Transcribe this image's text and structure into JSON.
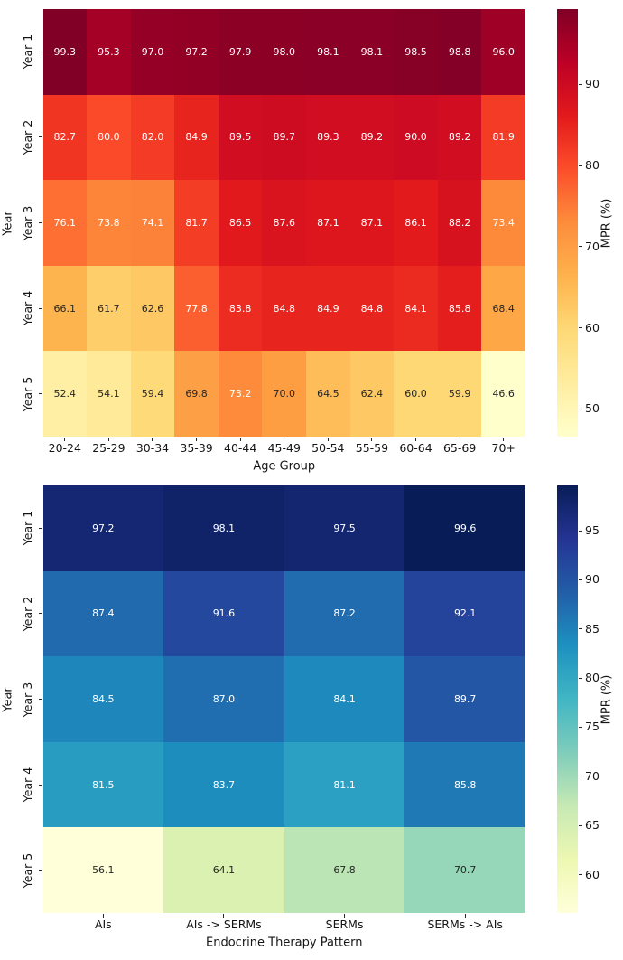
{
  "page": {
    "background": "#ffffff"
  },
  "chart_data": [
    {
      "type": "heatmap",
      "name": "mpr-by-age-group",
      "xlabel": "Age Group",
      "ylabel": "Year",
      "colorbar_label": "MPR (%)",
      "colormap": "YlOrRd",
      "rows": [
        "Year 1",
        "Year 2",
        "Year 3",
        "Year 4",
        "Year 5"
      ],
      "columns": [
        "20-24",
        "25-29",
        "30-34",
        "35-39",
        "40-44",
        "45-49",
        "50-54",
        "55-59",
        "60-64",
        "65-69",
        "70+"
      ],
      "values": [
        [
          99.3,
          95.3,
          97.0,
          97.2,
          97.9,
          98.0,
          98.1,
          98.1,
          98.5,
          98.8,
          96.0
        ],
        [
          82.7,
          80.0,
          82.0,
          84.9,
          89.5,
          89.7,
          89.3,
          89.2,
          90.0,
          89.2,
          81.9
        ],
        [
          76.1,
          73.8,
          74.1,
          81.7,
          86.5,
          87.6,
          87.1,
          87.1,
          86.1,
          88.2,
          73.4
        ],
        [
          66.1,
          61.7,
          62.6,
          77.8,
          83.8,
          84.8,
          84.9,
          84.8,
          84.1,
          85.8,
          68.4
        ],
        [
          52.4,
          54.1,
          59.4,
          69.8,
          73.2,
          70.0,
          64.5,
          62.4,
          60.0,
          59.9,
          46.6
        ]
      ],
      "vmin": 46.6,
      "vmax": 99.3,
      "colorbar_ticks": [
        90,
        80,
        70,
        60,
        50
      ],
      "value_format_decimals": 1,
      "legend_position": "right",
      "grid": false
    },
    {
      "type": "heatmap",
      "name": "mpr-by-endocrine-therapy-pattern",
      "xlabel": "Endocrine Therapy Pattern",
      "ylabel": "Year",
      "colorbar_label": "MPR (%)",
      "colormap": "YlGnBu",
      "rows": [
        "Year 1",
        "Year 2",
        "Year 3",
        "Year 4",
        "Year 5"
      ],
      "columns": [
        "AIs",
        "AIs -> SERMs",
        "SERMs",
        "SERMs -> AIs"
      ],
      "values": [
        [
          97.2,
          98.1,
          97.5,
          99.6
        ],
        [
          87.4,
          91.6,
          87.2,
          92.1
        ],
        [
          84.5,
          87.0,
          84.1,
          89.7
        ],
        [
          81.5,
          83.7,
          81.1,
          85.8
        ],
        [
          56.1,
          64.1,
          67.8,
          70.7
        ]
      ],
      "vmin": 56.1,
      "vmax": 99.6,
      "colorbar_ticks": [
        95,
        90,
        85,
        80,
        75,
        70,
        65,
        60
      ],
      "value_format_decimals": 1,
      "legend_position": "right",
      "grid": false
    }
  ],
  "colormaps": {
    "YlOrRd": [
      "#ffffcc",
      "#ffeda0",
      "#fed976",
      "#feb24c",
      "#fd8d3c",
      "#fc4e2a",
      "#e31a1c",
      "#bd0026",
      "#800026"
    ],
    "YlGnBu": [
      "#ffffd9",
      "#edf8b1",
      "#c7e9b4",
      "#7fcdbb",
      "#41b6c4",
      "#1d91c0",
      "#225ea8",
      "#253494",
      "#081d58"
    ]
  },
  "annotation_colors": {
    "light": "#ffffff",
    "dark": "#262626"
  }
}
